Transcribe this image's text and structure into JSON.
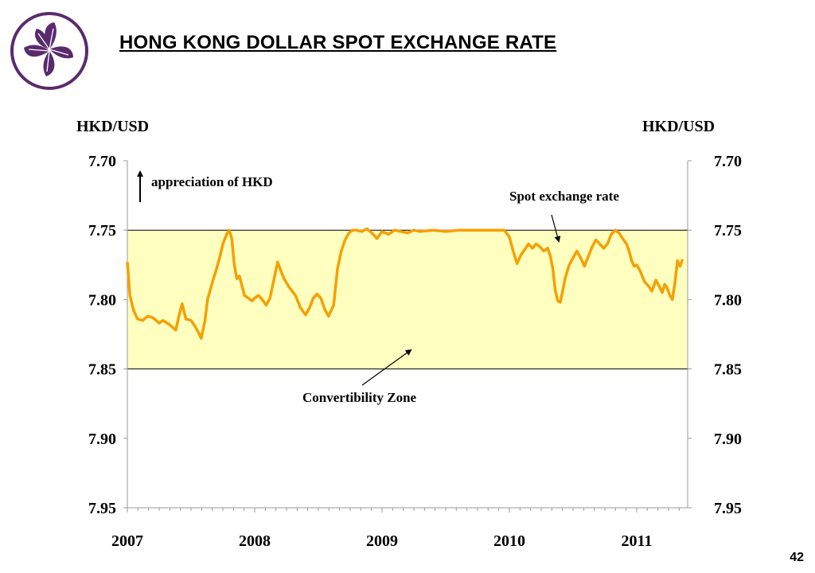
{
  "header": {
    "title": "HONG KONG DOLLAR SPOT EXCHANGE RATE",
    "logo_icon": "bauhinia-flower-icon",
    "logo_color": "#5a2a6e"
  },
  "page_number": "42",
  "chart_data": {
    "type": "line",
    "title": "HONG KONG DOLLAR SPOT EXCHANGE RATE",
    "ylabel_left": "HKD/USD",
    "ylabel_right": "HKD/USD",
    "y_reversed": true,
    "ylim": [
      7.7,
      7.95
    ],
    "yticks": [
      "7.70",
      "7.75",
      "7.80",
      "7.85",
      "7.90",
      "7.95"
    ],
    "xlim": [
      2007.0,
      2011.4
    ],
    "x_tick_labels": [
      "2007",
      "2008",
      "2009",
      "2010",
      "2011"
    ],
    "grid": false,
    "band": {
      "from": 7.75,
      "to": 7.85,
      "color": "#ffffc0",
      "label": "Convertibility Zone"
    },
    "series": [
      {
        "name": "Spot exchange rate",
        "color": "#f5a000",
        "x": [
          2007.0,
          2007.02,
          2007.05,
          2007.08,
          2007.12,
          2007.16,
          2007.2,
          2007.25,
          2007.28,
          2007.33,
          2007.38,
          2007.41,
          2007.43,
          2007.46,
          2007.5,
          2007.53,
          2007.56,
          2007.58,
          2007.61,
          2007.63,
          2007.67,
          2007.7,
          2007.73,
          2007.75,
          2007.78,
          2007.8,
          2007.82,
          2007.84,
          2007.86,
          2007.88,
          2007.9,
          2007.92,
          2007.95,
          2007.98,
          2008.0,
          2008.03,
          2008.06,
          2008.09,
          2008.12,
          2008.15,
          2008.18,
          2008.2,
          2008.23,
          2008.27,
          2008.32,
          2008.36,
          2008.4,
          2008.43,
          2008.46,
          2008.49,
          2008.52,
          2008.55,
          2008.58,
          2008.62,
          2008.65,
          2008.68,
          2008.71,
          2008.74,
          2008.77,
          2008.8,
          2008.84,
          2008.88,
          2008.92,
          2008.96,
          2009.0,
          2009.05,
          2009.1,
          2009.15,
          2009.2,
          2009.25,
          2009.3,
          2009.4,
          2009.5,
          2009.6,
          2009.7,
          2009.8,
          2009.9,
          2009.96,
          2010.0,
          2010.03,
          2010.06,
          2010.09,
          2010.12,
          2010.15,
          2010.18,
          2010.21,
          2010.24,
          2010.27,
          2010.3,
          2010.32,
          2010.34,
          2010.36,
          2010.38,
          2010.4,
          2010.42,
          2010.44,
          2010.47,
          2010.5,
          2010.53,
          2010.56,
          2010.59,
          2010.62,
          2010.65,
          2010.68,
          2010.71,
          2010.74,
          2010.77,
          2010.8,
          2010.83,
          2010.86,
          2010.89,
          2010.92,
          2010.94,
          2010.96,
          2010.98,
          2011.0,
          2011.03,
          2011.06,
          2011.09,
          2011.12,
          2011.15,
          2011.18,
          2011.2,
          2011.22,
          2011.24,
          2011.26,
          2011.28,
          2011.3,
          2011.32,
          2011.34,
          2011.36
        ],
        "values": [
          7.773,
          7.797,
          7.808,
          7.814,
          7.815,
          7.812,
          7.813,
          7.817,
          7.815,
          7.818,
          7.822,
          7.81,
          7.803,
          7.814,
          7.815,
          7.819,
          7.824,
          7.828,
          7.815,
          7.8,
          7.787,
          7.778,
          7.768,
          7.76,
          7.753,
          7.75,
          7.756,
          7.775,
          7.785,
          7.783,
          7.79,
          7.797,
          7.799,
          7.801,
          7.799,
          7.797,
          7.8,
          7.804,
          7.799,
          7.786,
          7.773,
          7.778,
          7.785,
          7.791,
          7.797,
          7.806,
          7.811,
          7.806,
          7.799,
          7.796,
          7.799,
          7.807,
          7.812,
          7.804,
          7.778,
          7.765,
          7.757,
          7.752,
          7.75,
          7.75,
          7.751,
          7.749,
          7.752,
          7.756,
          7.751,
          7.753,
          7.75,
          7.751,
          7.752,
          7.75,
          7.751,
          7.75,
          7.751,
          7.75,
          7.75,
          7.75,
          7.75,
          7.75,
          7.755,
          7.765,
          7.774,
          7.768,
          7.764,
          7.76,
          7.763,
          7.76,
          7.762,
          7.765,
          7.763,
          7.768,
          7.777,
          7.793,
          7.801,
          7.802,
          7.793,
          7.784,
          7.775,
          7.77,
          7.765,
          7.77,
          7.776,
          7.769,
          7.762,
          7.757,
          7.76,
          7.763,
          7.76,
          7.753,
          7.75,
          7.752,
          7.756,
          7.76,
          7.765,
          7.772,
          7.776,
          7.775,
          7.78,
          7.787,
          7.79,
          7.794,
          7.786,
          7.791,
          7.795,
          7.789,
          7.792,
          7.797,
          7.8,
          7.788,
          7.772,
          7.776,
          7.771
        ]
      }
    ],
    "annotations": [
      {
        "text": "appreciation of HKD",
        "arrow": "up"
      },
      {
        "text": "Spot exchange rate"
      },
      {
        "text": "Convertibility Zone"
      }
    ]
  }
}
